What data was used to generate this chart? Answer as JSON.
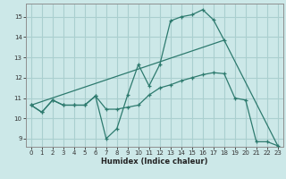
{
  "xlabel": "Humidex (Indice chaleur)",
  "bg_color": "#cce8e8",
  "line_color": "#2d7a6e",
  "grid_color": "#aacfcf",
  "xlim": [
    -0.5,
    23.5
  ],
  "ylim": [
    8.6,
    15.65
  ],
  "yticks": [
    9,
    10,
    11,
    12,
    13,
    14,
    15
  ],
  "xticks": [
    0,
    1,
    2,
    3,
    4,
    5,
    6,
    7,
    8,
    9,
    10,
    11,
    12,
    13,
    14,
    15,
    16,
    17,
    18,
    19,
    20,
    21,
    22,
    23
  ],
  "line1_x": [
    0,
    1,
    2,
    3,
    4,
    5,
    6,
    7,
    8,
    9,
    10,
    11,
    12,
    13,
    14,
    15,
    16,
    17,
    18
  ],
  "line1_y": [
    10.65,
    10.3,
    10.9,
    10.65,
    10.65,
    10.65,
    11.1,
    9.0,
    9.5,
    11.15,
    12.65,
    11.6,
    12.65,
    14.8,
    15.0,
    15.1,
    15.35,
    14.85,
    13.85
  ],
  "line2_x": [
    0,
    1,
    2,
    3,
    4,
    5,
    6,
    7,
    8,
    9,
    10,
    11,
    12,
    13,
    14,
    15,
    16,
    17,
    18,
    19,
    20,
    21,
    22,
    23
  ],
  "line2_y": [
    10.65,
    10.3,
    10.9,
    10.65,
    10.65,
    10.65,
    11.1,
    10.45,
    10.45,
    10.55,
    10.65,
    11.15,
    11.5,
    11.65,
    11.85,
    12.0,
    12.15,
    12.25,
    12.2,
    11.0,
    10.9,
    8.85,
    8.85,
    8.65
  ],
  "line3_x": [
    0,
    18,
    23
  ],
  "line3_y": [
    10.65,
    13.85,
    8.65
  ]
}
